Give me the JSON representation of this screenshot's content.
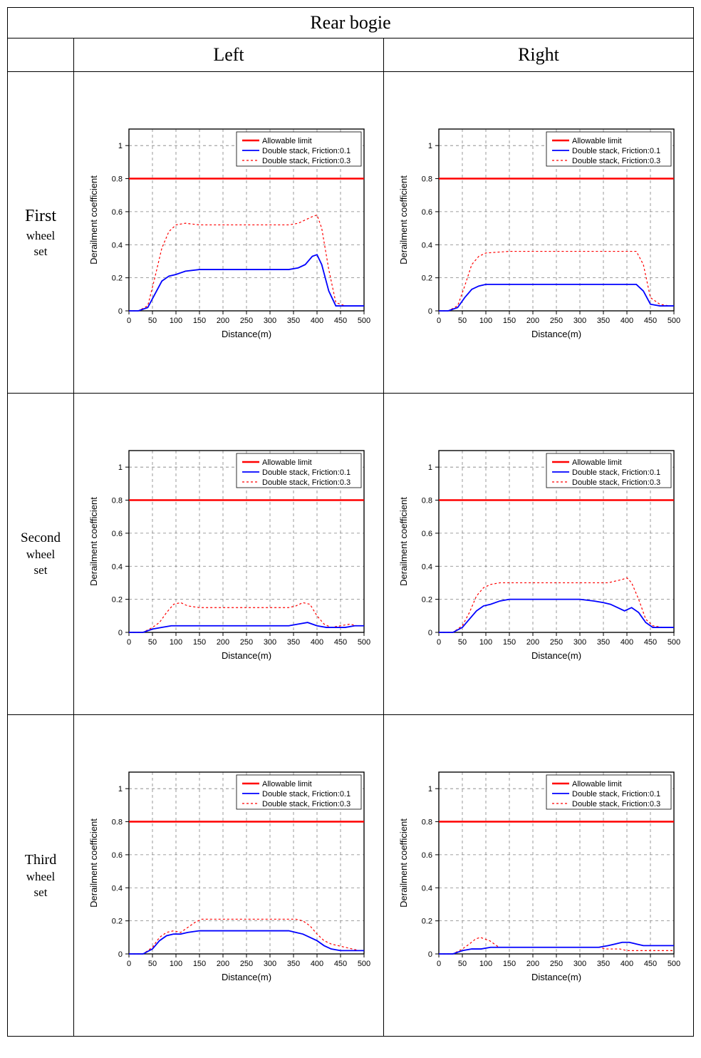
{
  "table": {
    "title": "Rear bogie",
    "col_left": "Left",
    "col_right": "Right",
    "rows": [
      {
        "big": "First",
        "small1": "wheel",
        "small2": "set"
      },
      {
        "big": "Second",
        "small1": "wheel",
        "small2": "set"
      },
      {
        "big": "Third",
        "small1": "wheel",
        "small2": "set"
      }
    ]
  },
  "chart_common": {
    "xlabel": "Distance(m)",
    "ylabel": "Derailment coefficient",
    "xlim": [
      0,
      500
    ],
    "ylim": [
      0,
      1.1
    ],
    "xticks": [
      0,
      50,
      100,
      150,
      200,
      250,
      300,
      350,
      400,
      450,
      500
    ],
    "yticks": [
      0,
      0.2,
      0.4,
      0.6,
      0.8,
      1.0
    ],
    "grid_color": "#808080",
    "grid_dash": "4,4",
    "axis_color": "#000000",
    "bg_color": "#ffffff",
    "plot_bg": "#ffffff",
    "tick_fontsize": 11,
    "label_fontsize": 13,
    "legend": {
      "items": [
        {
          "label": "Allowable limit",
          "color": "#ff0000",
          "dash": "",
          "width": 2.5
        },
        {
          "label": "Double stack, Friction:0.1",
          "color": "#0000ff",
          "dash": "",
          "width": 1.8
        },
        {
          "label": "Double stack, Friction:0.3",
          "color": "#ff0000",
          "dash": "3,3",
          "width": 1.2
        }
      ],
      "fontsize": 11
    },
    "limit_line": {
      "y": 0.8,
      "color": "#ff0000",
      "width": 2.5
    }
  },
  "charts": {
    "r1l": {
      "blue": [
        [
          0,
          0.0
        ],
        [
          20,
          0.0
        ],
        [
          40,
          0.02
        ],
        [
          55,
          0.1
        ],
        [
          70,
          0.18
        ],
        [
          85,
          0.21
        ],
        [
          100,
          0.22
        ],
        [
          120,
          0.24
        ],
        [
          150,
          0.25
        ],
        [
          200,
          0.25
        ],
        [
          250,
          0.25
        ],
        [
          300,
          0.25
        ],
        [
          340,
          0.25
        ],
        [
          360,
          0.26
        ],
        [
          375,
          0.28
        ],
        [
          390,
          0.33
        ],
        [
          400,
          0.34
        ],
        [
          410,
          0.28
        ],
        [
          425,
          0.12
        ],
        [
          440,
          0.03
        ],
        [
          460,
          0.03
        ],
        [
          480,
          0.03
        ],
        [
          500,
          0.03
        ]
      ],
      "reddot": [
        [
          0,
          0.0
        ],
        [
          20,
          0.0
        ],
        [
          40,
          0.03
        ],
        [
          55,
          0.2
        ],
        [
          70,
          0.38
        ],
        [
          85,
          0.48
        ],
        [
          100,
          0.52
        ],
        [
          120,
          0.53
        ],
        [
          150,
          0.52
        ],
        [
          200,
          0.52
        ],
        [
          250,
          0.52
        ],
        [
          300,
          0.52
        ],
        [
          340,
          0.52
        ],
        [
          360,
          0.53
        ],
        [
          375,
          0.55
        ],
        [
          390,
          0.57
        ],
        [
          400,
          0.58
        ],
        [
          410,
          0.5
        ],
        [
          425,
          0.25
        ],
        [
          440,
          0.05
        ],
        [
          460,
          0.03
        ],
        [
          480,
          0.03
        ],
        [
          500,
          0.03
        ]
      ]
    },
    "r1r": {
      "blue": [
        [
          0,
          0.0
        ],
        [
          20,
          0.0
        ],
        [
          40,
          0.02
        ],
        [
          55,
          0.08
        ],
        [
          70,
          0.13
        ],
        [
          85,
          0.15
        ],
        [
          100,
          0.16
        ],
        [
          150,
          0.16
        ],
        [
          200,
          0.16
        ],
        [
          250,
          0.16
        ],
        [
          300,
          0.16
        ],
        [
          350,
          0.16
        ],
        [
          400,
          0.16
        ],
        [
          420,
          0.16
        ],
        [
          435,
          0.12
        ],
        [
          450,
          0.04
        ],
        [
          470,
          0.03
        ],
        [
          490,
          0.03
        ],
        [
          500,
          0.03
        ]
      ],
      "reddot": [
        [
          0,
          0.0
        ],
        [
          20,
          0.0
        ],
        [
          40,
          0.03
        ],
        [
          55,
          0.15
        ],
        [
          70,
          0.28
        ],
        [
          85,
          0.33
        ],
        [
          100,
          0.35
        ],
        [
          150,
          0.36
        ],
        [
          200,
          0.36
        ],
        [
          250,
          0.36
        ],
        [
          300,
          0.36
        ],
        [
          350,
          0.36
        ],
        [
          400,
          0.36
        ],
        [
          420,
          0.36
        ],
        [
          435,
          0.28
        ],
        [
          450,
          0.08
        ],
        [
          470,
          0.04
        ],
        [
          490,
          0.03
        ],
        [
          500,
          0.03
        ]
      ]
    },
    "r2l": {
      "blue": [
        [
          0,
          0.0
        ],
        [
          30,
          0.0
        ],
        [
          50,
          0.02
        ],
        [
          70,
          0.03
        ],
        [
          90,
          0.04
        ],
        [
          120,
          0.04
        ],
        [
          150,
          0.04
        ],
        [
          200,
          0.04
        ],
        [
          250,
          0.04
        ],
        [
          300,
          0.04
        ],
        [
          340,
          0.04
        ],
        [
          360,
          0.05
        ],
        [
          380,
          0.06
        ],
        [
          400,
          0.04
        ],
        [
          420,
          0.03
        ],
        [
          440,
          0.03
        ],
        [
          460,
          0.03
        ],
        [
          480,
          0.04
        ],
        [
          500,
          0.04
        ]
      ],
      "reddot": [
        [
          0,
          0.0
        ],
        [
          30,
          0.0
        ],
        [
          50,
          0.03
        ],
        [
          65,
          0.06
        ],
        [
          80,
          0.12
        ],
        [
          95,
          0.17
        ],
        [
          110,
          0.18
        ],
        [
          125,
          0.16
        ],
        [
          150,
          0.15
        ],
        [
          200,
          0.15
        ],
        [
          250,
          0.15
        ],
        [
          300,
          0.15
        ],
        [
          340,
          0.15
        ],
        [
          355,
          0.16
        ],
        [
          370,
          0.18
        ],
        [
          385,
          0.17
        ],
        [
          400,
          0.1
        ],
        [
          415,
          0.05
        ],
        [
          430,
          0.03
        ],
        [
          450,
          0.04
        ],
        [
          470,
          0.05
        ],
        [
          485,
          0.04
        ],
        [
          500,
          0.04
        ]
      ]
    },
    "r2r": {
      "blue": [
        [
          0,
          0.0
        ],
        [
          30,
          0.0
        ],
        [
          50,
          0.03
        ],
        [
          65,
          0.08
        ],
        [
          80,
          0.13
        ],
        [
          95,
          0.16
        ],
        [
          110,
          0.17
        ],
        [
          130,
          0.19
        ],
        [
          150,
          0.2
        ],
        [
          200,
          0.2
        ],
        [
          250,
          0.2
        ],
        [
          300,
          0.2
        ],
        [
          330,
          0.19
        ],
        [
          350,
          0.18
        ],
        [
          365,
          0.17
        ],
        [
          380,
          0.15
        ],
        [
          395,
          0.13
        ],
        [
          410,
          0.15
        ],
        [
          425,
          0.12
        ],
        [
          440,
          0.06
        ],
        [
          455,
          0.03
        ],
        [
          475,
          0.03
        ],
        [
          500,
          0.03
        ]
      ],
      "reddot": [
        [
          0,
          0.0
        ],
        [
          30,
          0.0
        ],
        [
          50,
          0.04
        ],
        [
          65,
          0.12
        ],
        [
          80,
          0.22
        ],
        [
          95,
          0.27
        ],
        [
          110,
          0.29
        ],
        [
          130,
          0.3
        ],
        [
          150,
          0.3
        ],
        [
          200,
          0.3
        ],
        [
          250,
          0.3
        ],
        [
          300,
          0.3
        ],
        [
          340,
          0.3
        ],
        [
          360,
          0.3
        ],
        [
          375,
          0.31
        ],
        [
          390,
          0.32
        ],
        [
          400,
          0.33
        ],
        [
          410,
          0.3
        ],
        [
          425,
          0.2
        ],
        [
          440,
          0.08
        ],
        [
          455,
          0.04
        ],
        [
          475,
          0.03
        ],
        [
          500,
          0.03
        ]
      ]
    },
    "r3l": {
      "blue": [
        [
          0,
          0.0
        ],
        [
          30,
          0.0
        ],
        [
          50,
          0.03
        ],
        [
          65,
          0.08
        ],
        [
          80,
          0.11
        ],
        [
          95,
          0.12
        ],
        [
          110,
          0.12
        ],
        [
          125,
          0.13
        ],
        [
          150,
          0.14
        ],
        [
          200,
          0.14
        ],
        [
          250,
          0.14
        ],
        [
          300,
          0.14
        ],
        [
          340,
          0.14
        ],
        [
          355,
          0.13
        ],
        [
          370,
          0.12
        ],
        [
          385,
          0.1
        ],
        [
          400,
          0.08
        ],
        [
          415,
          0.05
        ],
        [
          430,
          0.03
        ],
        [
          450,
          0.02
        ],
        [
          475,
          0.02
        ],
        [
          500,
          0.02
        ]
      ],
      "reddot": [
        [
          0,
          0.0
        ],
        [
          30,
          0.0
        ],
        [
          50,
          0.04
        ],
        [
          65,
          0.1
        ],
        [
          80,
          0.13
        ],
        [
          95,
          0.14
        ],
        [
          110,
          0.13
        ],
        [
          125,
          0.16
        ],
        [
          140,
          0.19
        ],
        [
          155,
          0.21
        ],
        [
          175,
          0.21
        ],
        [
          200,
          0.21
        ],
        [
          250,
          0.21
        ],
        [
          300,
          0.21
        ],
        [
          340,
          0.21
        ],
        [
          355,
          0.21
        ],
        [
          370,
          0.2
        ],
        [
          385,
          0.17
        ],
        [
          400,
          0.12
        ],
        [
          415,
          0.08
        ],
        [
          430,
          0.06
        ],
        [
          445,
          0.05
        ],
        [
          460,
          0.04
        ],
        [
          475,
          0.03
        ],
        [
          490,
          0.02
        ],
        [
          500,
          0.02
        ]
      ]
    },
    "r3r": {
      "blue": [
        [
          0,
          0.0
        ],
        [
          30,
          0.0
        ],
        [
          50,
          0.02
        ],
        [
          70,
          0.03
        ],
        [
          90,
          0.03
        ],
        [
          110,
          0.04
        ],
        [
          130,
          0.04
        ],
        [
          150,
          0.04
        ],
        [
          200,
          0.04
        ],
        [
          250,
          0.04
        ],
        [
          300,
          0.04
        ],
        [
          340,
          0.04
        ],
        [
          360,
          0.05
        ],
        [
          375,
          0.06
        ],
        [
          390,
          0.07
        ],
        [
          405,
          0.07
        ],
        [
          420,
          0.06
        ],
        [
          435,
          0.05
        ],
        [
          450,
          0.05
        ],
        [
          470,
          0.05
        ],
        [
          490,
          0.05
        ],
        [
          500,
          0.05
        ]
      ],
      "reddot": [
        [
          0,
          0.0
        ],
        [
          30,
          0.0
        ],
        [
          50,
          0.03
        ],
        [
          65,
          0.06
        ],
        [
          78,
          0.09
        ],
        [
          88,
          0.1
        ],
        [
          98,
          0.09
        ],
        [
          108,
          0.08
        ],
        [
          118,
          0.06
        ],
        [
          128,
          0.04
        ],
        [
          140,
          0.04
        ],
        [
          160,
          0.04
        ],
        [
          200,
          0.04
        ],
        [
          250,
          0.04
        ],
        [
          300,
          0.04
        ],
        [
          340,
          0.04
        ],
        [
          355,
          0.03
        ],
        [
          370,
          0.03
        ],
        [
          385,
          0.03
        ],
        [
          400,
          0.02
        ],
        [
          420,
          0.02
        ],
        [
          440,
          0.02
        ],
        [
          460,
          0.02
        ],
        [
          480,
          0.02
        ],
        [
          500,
          0.02
        ]
      ]
    }
  }
}
